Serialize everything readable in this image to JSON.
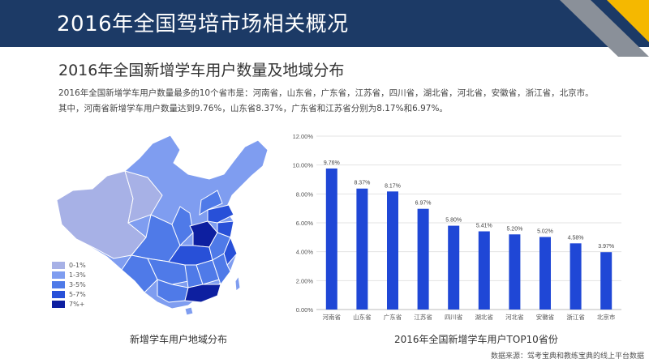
{
  "header": {
    "title": "2016年全国驾培市场相关概况"
  },
  "section": {
    "title": "2016年全国新增学车用户数量及地域分布",
    "para1": "2016年全国新增学车用户数量最多的10个省市是：河南省，山东省，广东省，江苏省，四川省，湖北省，河北省，安徽省，浙江省，北京市。",
    "para2": "其中，河南省新增学车用户数量达到9.76%，山东省8.37%，广东省和江苏省分别为8.17%和6.97%。"
  },
  "map": {
    "caption": "新增学车用户地域分布",
    "legend": [
      {
        "label": "0-1%",
        "color": "#a7b1e6"
      },
      {
        "label": "1-3%",
        "color": "#7f9df0"
      },
      {
        "label": "3-5%",
        "color": "#4f7ae8"
      },
      {
        "label": "5-7%",
        "color": "#2850d8"
      },
      {
        "label": "7%+",
        "color": "#0d1fa0"
      }
    ]
  },
  "chart_data": {
    "type": "bar",
    "title": "2016年全国新增学车用户TOP10省份",
    "categories": [
      "河南省",
      "山东省",
      "广东省",
      "江苏省",
      "四川省",
      "湖北省",
      "河北省",
      "安徽省",
      "浙江省",
      "北京市"
    ],
    "values": [
      9.76,
      8.37,
      8.17,
      6.97,
      5.8,
      5.41,
      5.2,
      5.02,
      4.58,
      3.97
    ],
    "data_labels": [
      "9.76%",
      "8.37%",
      "8.17%",
      "6.97%",
      "5.80%",
      "5.41%",
      "5.20%",
      "5.02%",
      "4.58%",
      "3.97%"
    ],
    "ylim": [
      0,
      12
    ],
    "yticks": [
      "0.00%",
      "2.00%",
      "4.00%",
      "6.00%",
      "8.00%",
      "10.00%",
      "12.00%"
    ],
    "grid": true,
    "bar_color": "#1f47d6"
  },
  "footer": {
    "source": "数据来源：驾考宝典和教练宝典的线上平台数据"
  }
}
